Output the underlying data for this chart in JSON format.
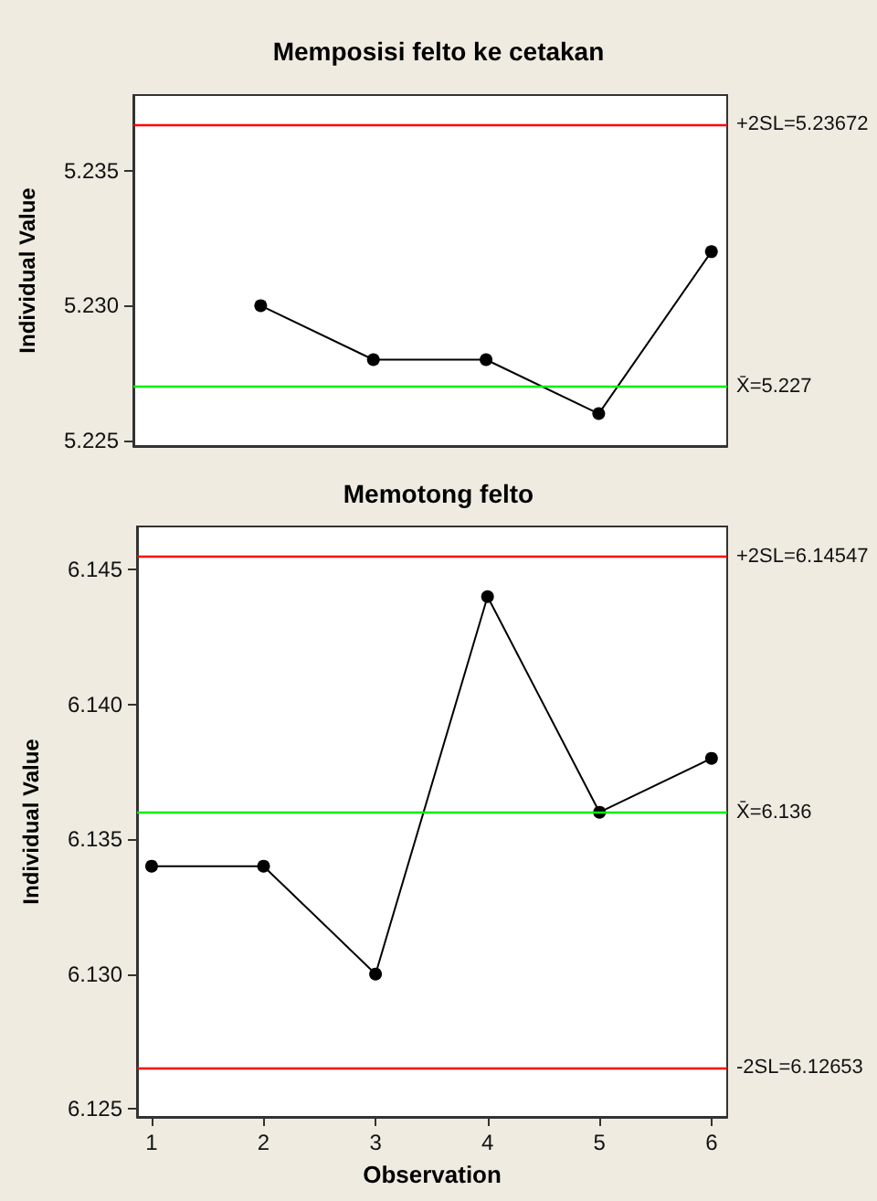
{
  "chart_data": [
    {
      "type": "line",
      "title": "Memposisi felto ke cetakan",
      "ylabel": "Individual Value",
      "categories": [
        null,
        null,
        null,
        null,
        null,
        null
      ],
      "ylim": [
        5.2248,
        5.2378
      ],
      "yticks": [
        {
          "value": 5.225,
          "label": "5.225"
        },
        {
          "value": 5.23,
          "label": "5.230"
        },
        {
          "value": 5.235,
          "label": "5.235"
        }
      ],
      "tick_labels": "y",
      "series": [
        {
          "color": "#000000",
          "values": [
            null,
            5.23,
            5.228,
            5.228,
            5.226,
            5.232
          ]
        }
      ],
      "ref_lines": [
        {
          "axis": "y",
          "value": 5.23672,
          "label": "+2SL=5.23672",
          "color": "#ff0000"
        },
        {
          "axis": "y",
          "value": 5.227,
          "label": "X̄=5.227",
          "color": "#00ee00"
        }
      ],
      "marker": "circle",
      "grid": false
    },
    {
      "type": "line",
      "title": "Memotong felto",
      "xlabel": "Observation",
      "ylabel": "Individual Value",
      "x": [
        1,
        2,
        3,
        4,
        5,
        6
      ],
      "xlim": [
        0.87,
        6.14
      ],
      "xticks": [
        1,
        2,
        3,
        4,
        5,
        6
      ],
      "ylim": [
        6.1247,
        6.1466
      ],
      "yticks": [
        {
          "value": 6.125,
          "label": "6.125"
        },
        {
          "value": 6.13,
          "label": "6.130"
        },
        {
          "value": 6.135,
          "label": "6.135"
        },
        {
          "value": 6.14,
          "label": "6.140"
        },
        {
          "value": 6.145,
          "label": "6.145"
        }
      ],
      "series": [
        {
          "color": "#000000",
          "values": [
            6.134,
            6.134,
            6.13,
            6.144,
            6.136,
            6.138
          ]
        }
      ],
      "ref_lines": [
        {
          "axis": "y",
          "value": 6.14547,
          "label": "+2SL=6.14547",
          "color": "#ff0000"
        },
        {
          "axis": "y",
          "value": 6.136,
          "label": "X̄=6.136",
          "color": "#00ee00"
        },
        {
          "axis": "y",
          "value": 6.12653,
          "label": "-2SL=6.12653",
          "color": "#ff0000"
        }
      ],
      "marker": "circle",
      "grid": false
    }
  ]
}
